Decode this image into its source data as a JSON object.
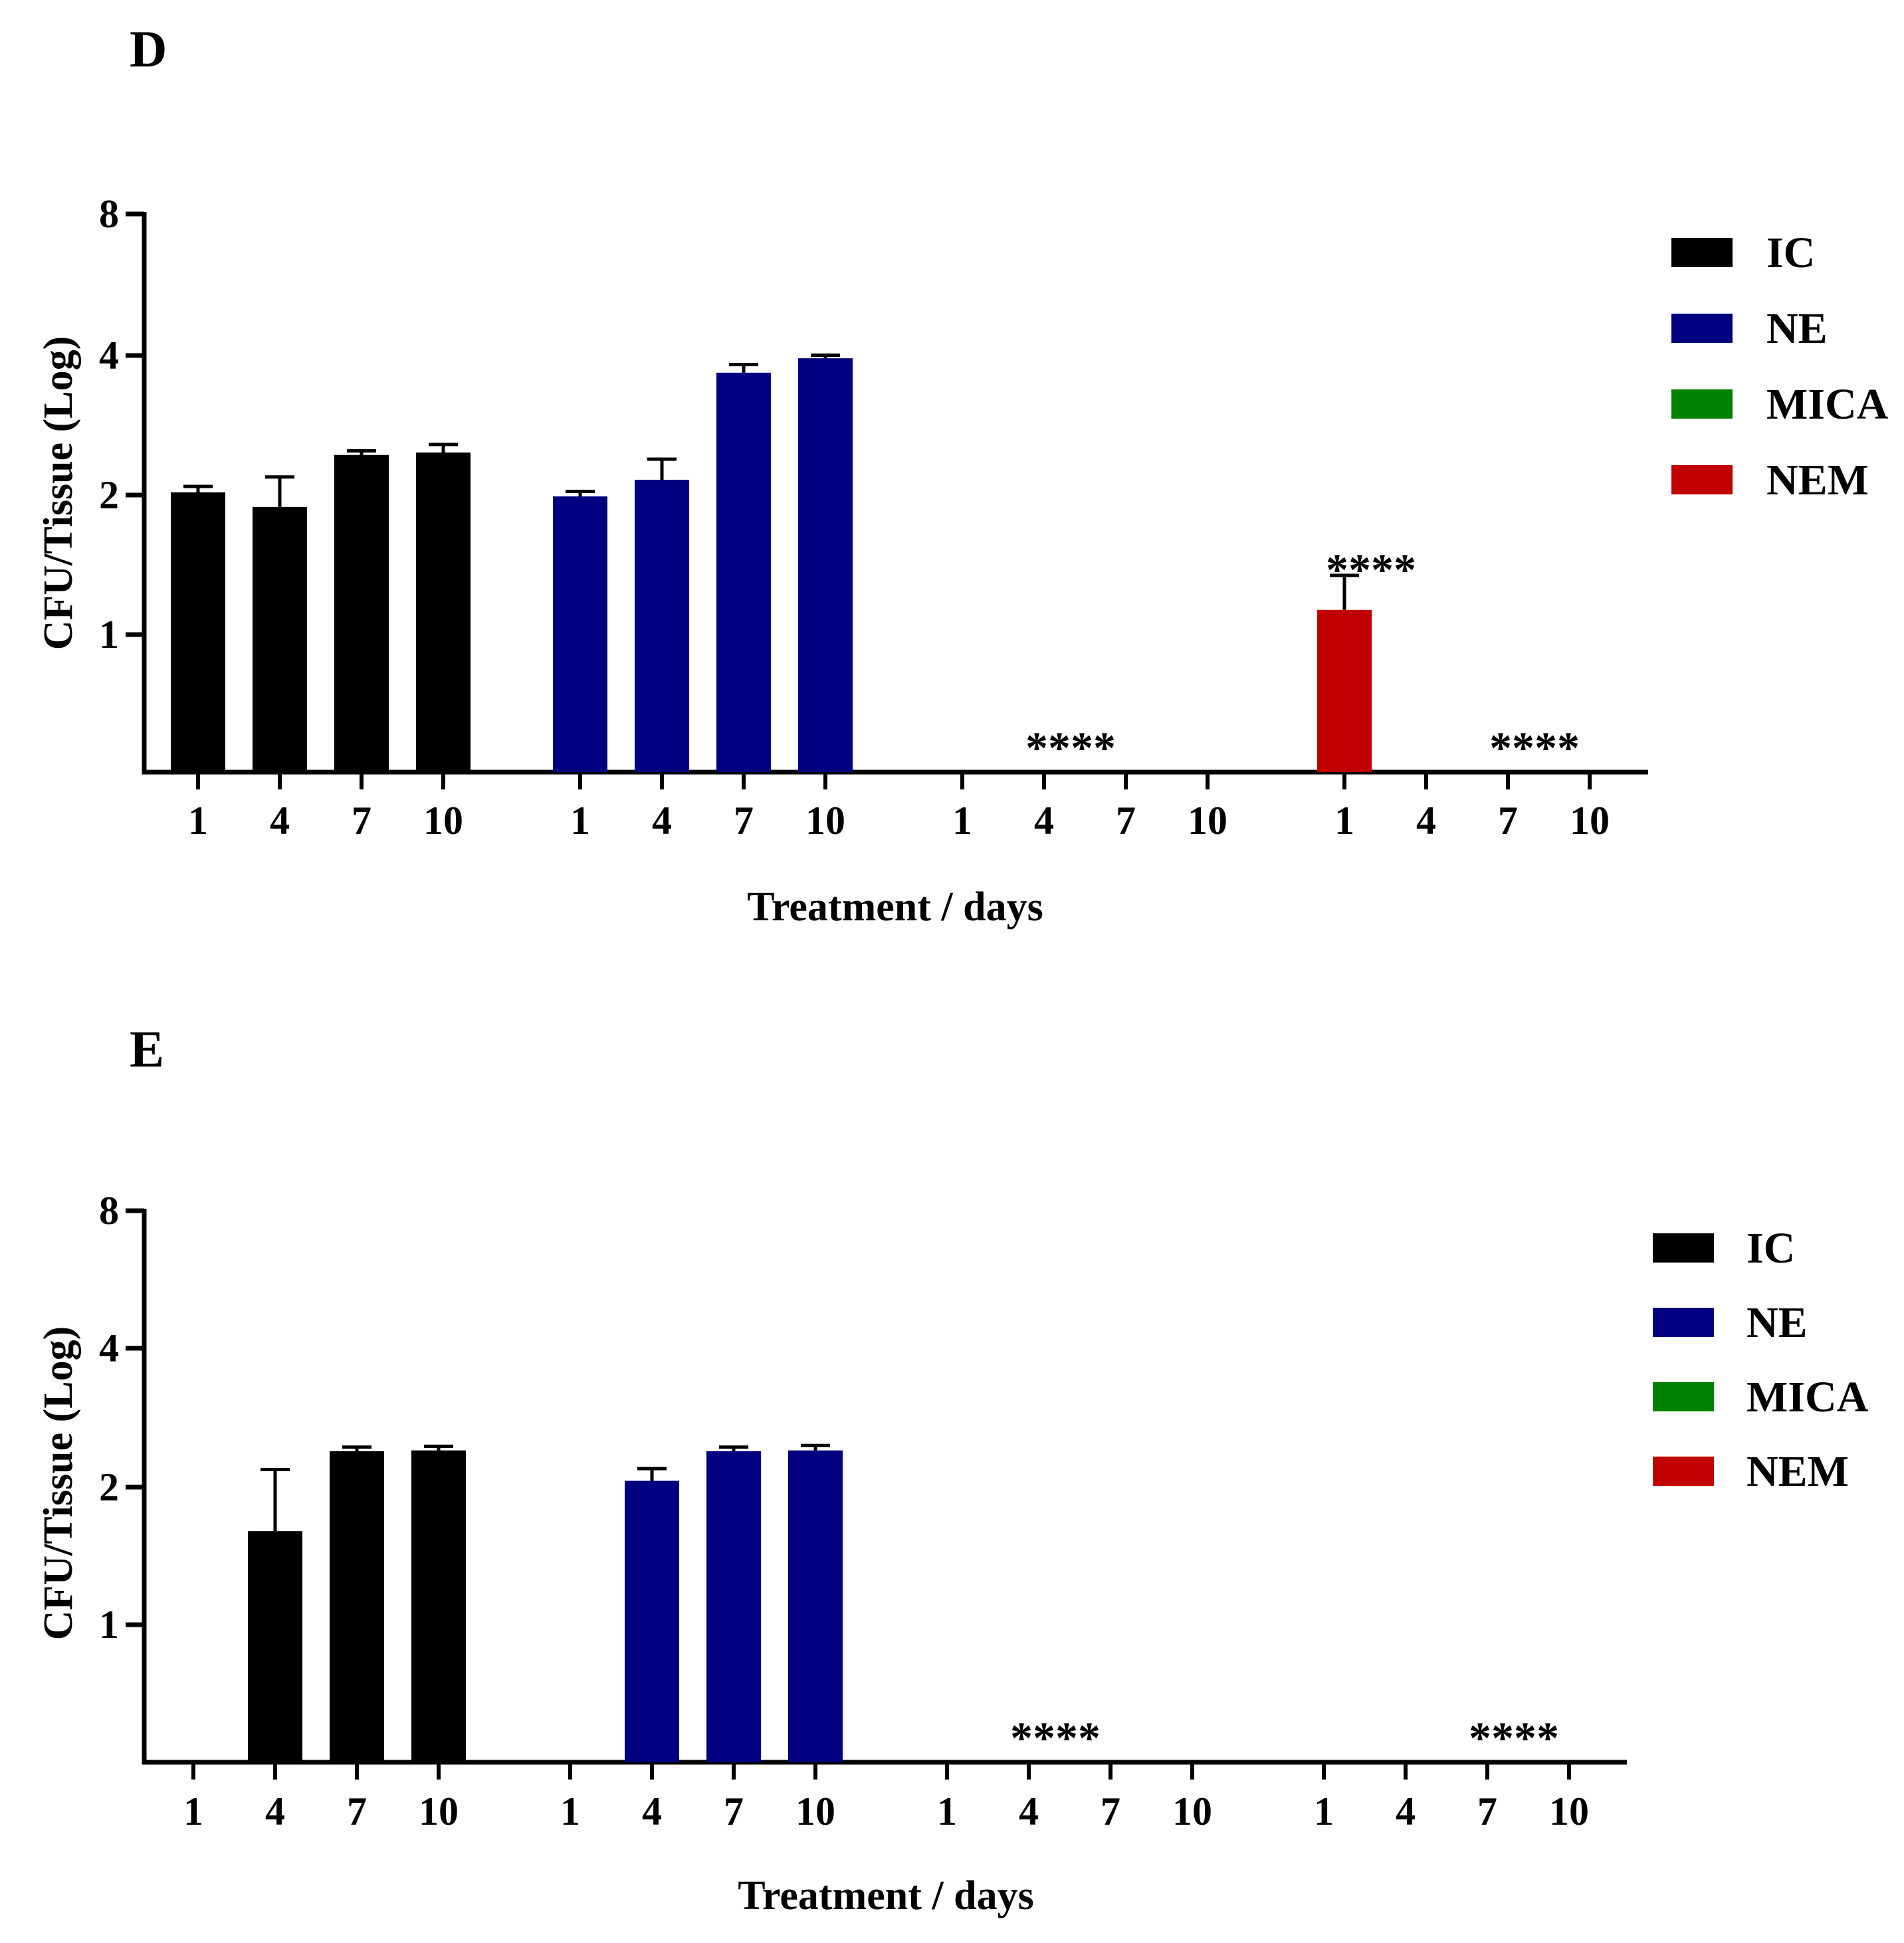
{
  "chart_data": [
    {
      "panel_label": "D",
      "type": "bar",
      "ylabel": "CFU/Tissue (Log)",
      "xlabel": "Treatment / days",
      "y_ticks": [
        1,
        2,
        4,
        8
      ],
      "y_tick_labels": [
        "1",
        "2",
        "4",
        "8"
      ],
      "categories": [
        "1",
        "4",
        "7",
        "10"
      ],
      "legend_position": "top-right",
      "series": [
        {
          "name": "IC",
          "color": "#000000",
          "values": [
            2.02,
            1.88,
            2.43,
            2.46
          ],
          "errors": [
            0.06,
            0.3,
            0.05,
            0.1
          ],
          "annotations": []
        },
        {
          "name": "NE",
          "color": "#000080",
          "values": [
            1.98,
            2.15,
            3.65,
            3.92
          ],
          "errors": [
            0.05,
            0.23,
            0.15,
            0.06
          ],
          "annotations": []
        },
        {
          "name": "MICA",
          "color": "#008000",
          "values": [
            0,
            0,
            0,
            0
          ],
          "errors": [
            0,
            0,
            0,
            0
          ],
          "annotations": [
            {
              "text": "****",
              "index": 1
            }
          ]
        },
        {
          "name": "NEM",
          "color": "#c00000",
          "values": [
            1.13,
            0,
            0,
            0
          ],
          "errors": [
            0.21,
            0,
            0,
            0
          ],
          "annotations": [
            {
              "text": "****",
              "index": 0
            },
            {
              "text": "****",
              "index": 2
            }
          ]
        }
      ]
    },
    {
      "panel_label": "E",
      "type": "bar",
      "ylabel": "CFU/Tissue (Log)",
      "xlabel": "Treatment / days",
      "y_ticks": [
        1,
        2,
        4,
        8
      ],
      "y_tick_labels": [
        "1",
        "2",
        "4",
        "8"
      ],
      "categories": [
        "1",
        "4",
        "7",
        "10"
      ],
      "legend_position": "top-right",
      "series": [
        {
          "name": "IC",
          "color": "#000000",
          "values": [
            0,
            1.6,
            2.39,
            2.4
          ],
          "errors": [
            0,
            0.58,
            0.05,
            0.05
          ],
          "annotations": []
        },
        {
          "name": "NE",
          "color": "#000080",
          "values": [
            0,
            2.06,
            2.39,
            2.4
          ],
          "errors": [
            0,
            0.13,
            0.05,
            0.06
          ],
          "annotations": []
        },
        {
          "name": "MICA",
          "color": "#008000",
          "values": [
            0,
            0,
            0,
            0
          ],
          "errors": [
            0,
            0,
            0,
            0
          ],
          "annotations": [
            {
              "text": "****",
              "index": 1
            }
          ]
        },
        {
          "name": "NEM",
          "color": "#c00000",
          "values": [
            0,
            0,
            0,
            0
          ],
          "errors": [
            0,
            0,
            0,
            0
          ],
          "annotations": [
            {
              "text": "****",
              "index": 2
            }
          ]
        }
      ]
    }
  ]
}
